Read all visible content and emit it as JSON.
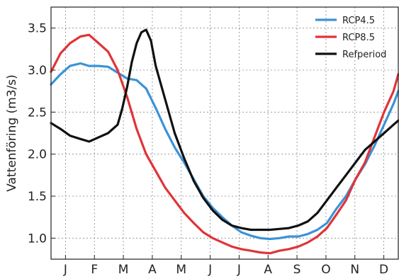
{
  "chart_data": {
    "type": "line",
    "title": "",
    "xlabel": "",
    "ylabel": "Vattenföring (m3/s)",
    "x_tick_labels": [
      "J",
      "F",
      "M",
      "A",
      "M",
      "J",
      "J",
      "A",
      "S",
      "O",
      "N",
      "D"
    ],
    "yticks": [
      1.0,
      1.5,
      2.0,
      2.5,
      3.0,
      3.5
    ],
    "ylim": [
      0.75,
      3.75
    ],
    "xlim": [
      0,
      365
    ],
    "grid": true,
    "legend_position": "top-right",
    "series": [
      {
        "name": "RCP4.5",
        "color": "#3a93d6",
        "x": [
          0,
          10,
          20,
          31,
          40,
          50,
          60,
          70,
          80,
          90,
          100,
          110,
          120,
          130,
          140,
          150,
          160,
          170,
          180,
          190,
          200,
          210,
          220,
          230,
          240,
          250,
          260,
          270,
          280,
          290,
          300,
          310,
          320,
          330,
          340,
          350,
          360,
          365
        ],
        "y": [
          2.83,
          2.95,
          3.05,
          3.08,
          3.05,
          3.05,
          3.04,
          2.97,
          2.9,
          2.88,
          2.78,
          2.55,
          2.3,
          2.08,
          1.9,
          1.7,
          1.5,
          1.36,
          1.25,
          1.15,
          1.07,
          1.03,
          1.0,
          0.99,
          1.0,
          1.02,
          1.02,
          1.05,
          1.1,
          1.18,
          1.35,
          1.5,
          1.7,
          1.88,
          2.1,
          2.35,
          2.6,
          2.75
        ]
      },
      {
        "name": "RCP8.5",
        "color": "#e03438",
        "x": [
          0,
          10,
          20,
          31,
          40,
          50,
          60,
          70,
          80,
          90,
          100,
          110,
          120,
          130,
          140,
          150,
          160,
          170,
          180,
          190,
          200,
          210,
          220,
          230,
          240,
          250,
          260,
          270,
          280,
          290,
          300,
          310,
          320,
          330,
          340,
          350,
          360,
          365
        ],
        "y": [
          2.98,
          3.2,
          3.32,
          3.4,
          3.42,
          3.32,
          3.22,
          3.0,
          2.68,
          2.3,
          2.0,
          1.8,
          1.6,
          1.45,
          1.3,
          1.18,
          1.07,
          1.0,
          0.95,
          0.9,
          0.87,
          0.85,
          0.83,
          0.82,
          0.85,
          0.87,
          0.9,
          0.95,
          1.02,
          1.12,
          1.28,
          1.45,
          1.7,
          1.9,
          2.2,
          2.5,
          2.75,
          2.95
        ]
      },
      {
        "name": "Refperiod",
        "color": "#111111",
        "x": [
          0,
          10,
          20,
          31,
          40,
          50,
          60,
          70,
          75,
          80,
          85,
          90,
          95,
          100,
          105,
          110,
          120,
          130,
          140,
          150,
          160,
          170,
          180,
          190,
          200,
          210,
          220,
          230,
          240,
          250,
          260,
          270,
          280,
          290,
          300,
          310,
          320,
          330,
          340,
          350,
          360,
          365
        ],
        "y": [
          2.37,
          2.3,
          2.22,
          2.18,
          2.15,
          2.2,
          2.25,
          2.35,
          2.55,
          2.8,
          3.1,
          3.32,
          3.45,
          3.48,
          3.35,
          3.05,
          2.65,
          2.25,
          1.95,
          1.68,
          1.48,
          1.33,
          1.22,
          1.15,
          1.12,
          1.1,
          1.1,
          1.1,
          1.11,
          1.12,
          1.15,
          1.2,
          1.3,
          1.45,
          1.6,
          1.75,
          1.9,
          2.05,
          2.15,
          2.25,
          2.35,
          2.4
        ]
      }
    ]
  }
}
